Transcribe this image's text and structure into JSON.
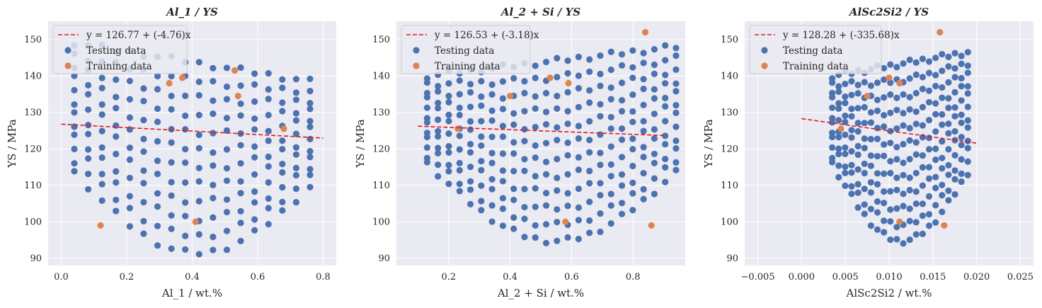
{
  "colors": {
    "testing": "#4c72b0",
    "training": "#dd8452",
    "fit": "#e41a1c",
    "background": "#eaeaf2"
  },
  "chart_data": [
    {
      "type": "scatter",
      "title": "Al_1 / YS",
      "xlabel": "Al_1 / wt.%",
      "ylabel": "YS / MPa",
      "xlim": [
        -0.04,
        0.84
      ],
      "ylim": [
        88,
        155
      ],
      "xticks": [
        0.0,
        0.2,
        0.4,
        0.6,
        0.8
      ],
      "xtick_labels": [
        "0.0",
        "0.2",
        "0.4",
        "0.6",
        "0.8"
      ],
      "yticks": [
        90,
        100,
        110,
        120,
        130,
        140,
        150
      ],
      "ytick_labels": [
        "90",
        "100",
        "110",
        "120",
        "130",
        "140",
        "150"
      ],
      "grid": true,
      "legend_position": "top-left",
      "fit_line": {
        "label": "y = 126.77 + (-4.76)x",
        "intercept": 126.77,
        "slope": -4.76,
        "x_range": [
          0.0,
          0.8
        ]
      },
      "training_points": [
        [
          0.12,
          99
        ],
        [
          0.33,
          138
        ],
        [
          0.37,
          139.5
        ],
        [
          0.41,
          100
        ],
        [
          0.53,
          141.5
        ],
        [
          0.54,
          134.5
        ],
        [
          0.68,
          125.5
        ]
      ],
      "testing_grid": {
        "x_range": [
          0.04,
          0.76
        ],
        "n_columns": 18,
        "top_start": 149.0,
        "top_end": 138.5,
        "bottom_start": 113.5,
        "bottom_end": 109.5,
        "bottom_dip": 20.0,
        "rows": 12
      },
      "series": [
        {
          "name": "Testing data"
        },
        {
          "name": "Training data"
        }
      ]
    },
    {
      "type": "scatter",
      "title": "Al_2 + Si / YS",
      "xlabel": "Al_2 + Si / wt.%",
      "ylabel": "YS / MPa",
      "xlim": [
        0.03,
        0.97
      ],
      "ylim": [
        88,
        155
      ],
      "xticks": [
        0.2,
        0.4,
        0.6,
        0.8
      ],
      "xtick_labels": [
        "0.2",
        "0.4",
        "0.6",
        "0.8"
      ],
      "yticks": [
        90,
        100,
        110,
        120,
        130,
        140,
        150
      ],
      "ytick_labels": [
        "90",
        "100",
        "110",
        "120",
        "130",
        "140",
        "150"
      ],
      "grid": true,
      "legend_position": "top-left",
      "fit_line": {
        "label": "y = 126.53 + (-3.18)x",
        "intercept": 126.53,
        "slope": -3.18,
        "x_range": [
          0.1,
          0.9
        ]
      },
      "training_points": [
        [
          0.23,
          125.5
        ],
        [
          0.4,
          134.5
        ],
        [
          0.53,
          139.5
        ],
        [
          0.58,
          100
        ],
        [
          0.59,
          138
        ],
        [
          0.84,
          152
        ],
        [
          0.86,
          99
        ]
      ],
      "testing_grid": {
        "x_range": [
          0.13,
          0.94
        ],
        "n_columns": 24,
        "top_start": 140.0,
        "top_end": 148.0,
        "bottom_start": 116.0,
        "bottom_end": 113.5,
        "bottom_dip": 20.0,
        "rows": 12
      },
      "series": [
        {
          "name": "Testing data"
        },
        {
          "name": "Training data"
        }
      ]
    },
    {
      "type": "scatter",
      "title": "AlSc2Si2 / YS",
      "xlabel": "AlSc2Si2 / wt.%",
      "ylabel": "YS / MPa",
      "xlim": [
        -0.0065,
        0.0265
      ],
      "ylim": [
        88,
        155
      ],
      "xticks": [
        -0.005,
        0.0,
        0.005,
        0.01,
        0.015,
        0.02,
        0.025
      ],
      "xtick_labels": [
        "−0.005",
        "0.000",
        "0.005",
        "0.010",
        "0.015",
        "0.020",
        "0.025"
      ],
      "yticks": [
        90,
        100,
        110,
        120,
        130,
        140,
        150
      ],
      "ytick_labels": [
        "90",
        "100",
        "110",
        "120",
        "130",
        "140",
        "150"
      ],
      "grid": true,
      "legend_position": "top-left",
      "fit_line": {
        "label": "y = 128.28 + (-335.68)x",
        "intercept": 128.28,
        "slope": -335.68,
        "x_range": [
          0.0,
          0.02
        ]
      },
      "training_points": [
        [
          0.0045,
          125.5
        ],
        [
          0.0075,
          134.5
        ],
        [
          0.01,
          139.5
        ],
        [
          0.0112,
          100
        ],
        [
          0.0112,
          138
        ],
        [
          0.0158,
          152
        ],
        [
          0.0163,
          99
        ]
      ],
      "testing_grid": {
        "x_range": [
          0.0035,
          0.019
        ],
        "n_columns": 22,
        "top_start": 140.0,
        "top_end": 146.5,
        "bottom_start": 116.0,
        "bottom_end": 113.5,
        "bottom_dip": 20.0,
        "rows": 12
      },
      "series": [
        {
          "name": "Testing data"
        },
        {
          "name": "Training data"
        }
      ]
    }
  ]
}
